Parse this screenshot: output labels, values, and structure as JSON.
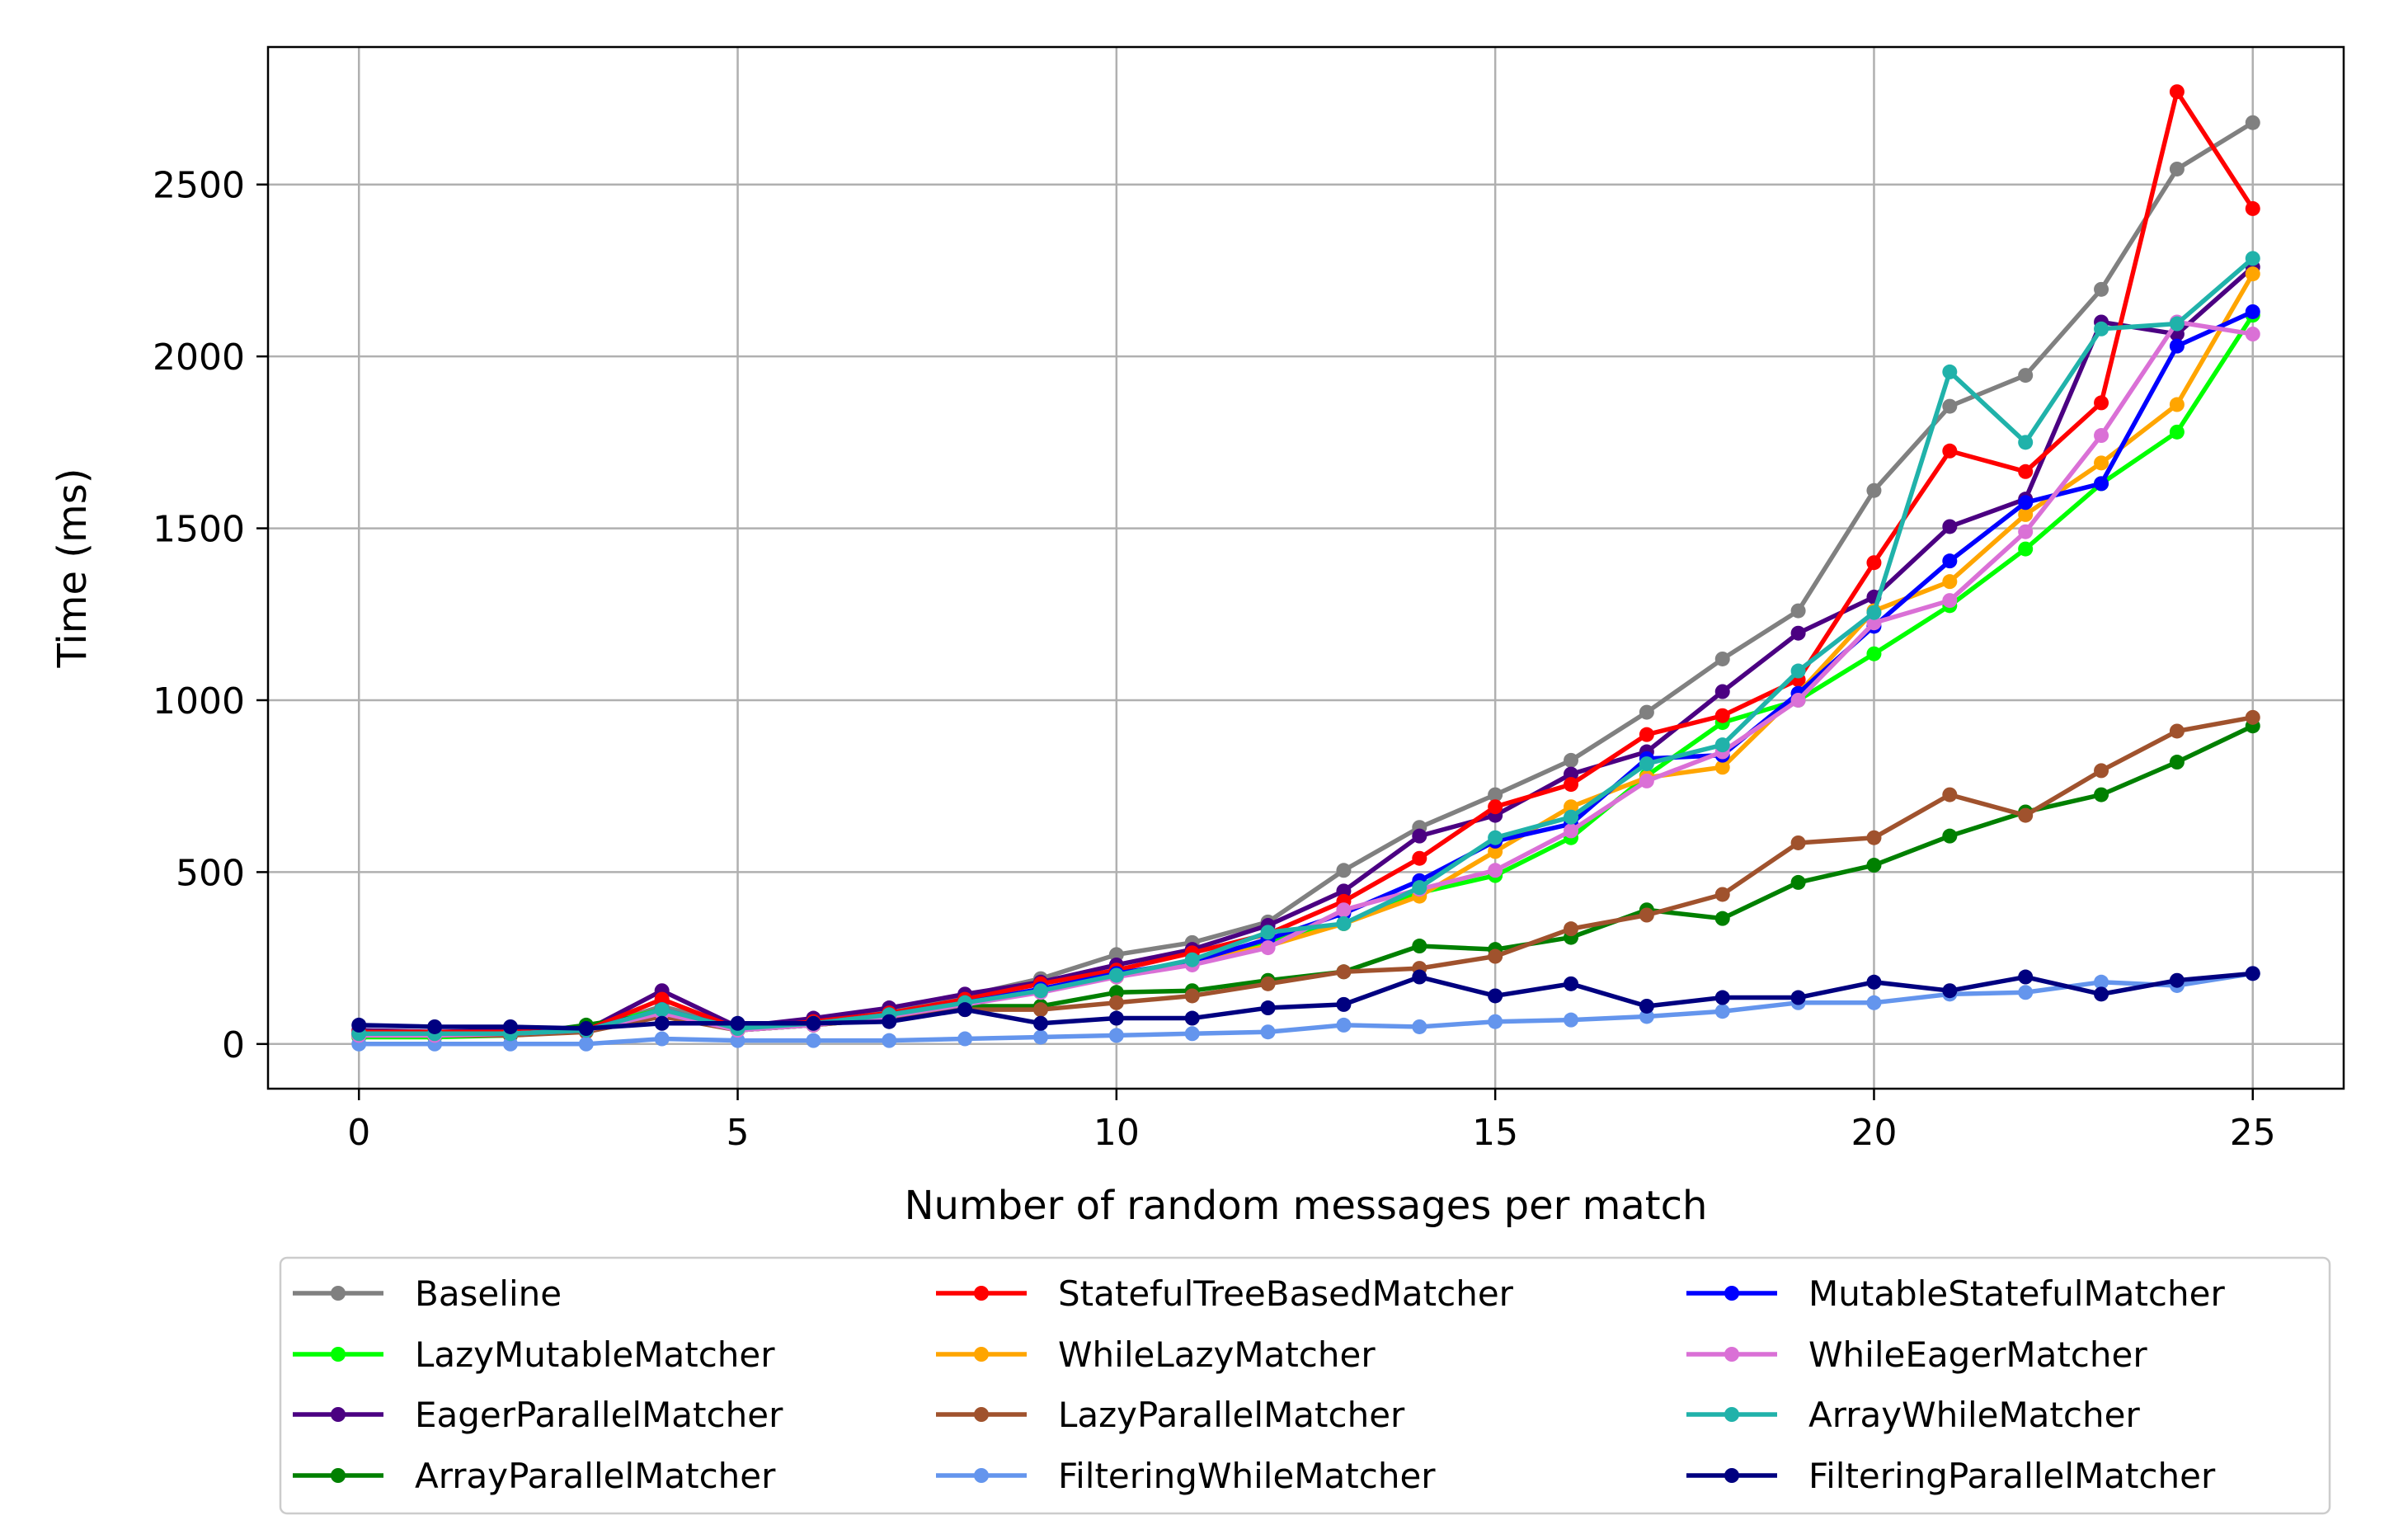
{
  "chart_data": {
    "type": "line",
    "title": "",
    "xlabel": "Number of random messages per match",
    "ylabel": "Time (ms)",
    "xlim": [
      -1.2,
      26.2
    ],
    "ylim": [
      -130,
      2900
    ],
    "xticks": [
      0,
      5,
      10,
      15,
      20,
      25
    ],
    "yticks": [
      0,
      500,
      1000,
      1500,
      2000,
      2500
    ],
    "grid": true,
    "legend_position": "below",
    "legend_columns": 3,
    "x": [
      0,
      1,
      2,
      3,
      4,
      5,
      6,
      7,
      8,
      9,
      10,
      11,
      12,
      13,
      14,
      15,
      16,
      17,
      18,
      19,
      20,
      21,
      22,
      23,
      24,
      25
    ],
    "series": [
      {
        "name": "Baseline",
        "color": "#808080",
        "values": [
          30,
          30,
          35,
          40,
          110,
          50,
          70,
          95,
          140,
          190,
          260,
          295,
          355,
          505,
          630,
          725,
          825,
          965,
          1120,
          1260,
          1610,
          1855,
          1945,
          2195,
          2545,
          2680
        ]
      },
      {
        "name": "LazyMutableMatcher",
        "color": "#00ff00",
        "values": [
          20,
          20,
          25,
          50,
          100,
          40,
          55,
          80,
          115,
          155,
          200,
          240,
          300,
          350,
          440,
          490,
          600,
          780,
          935,
          1000,
          1135,
          1275,
          1440,
          1630,
          1780,
          2120
        ]
      },
      {
        "name": "EagerParallelMatcher",
        "color": "#4b0082",
        "values": [
          40,
          35,
          40,
          40,
          155,
          50,
          75,
          105,
          145,
          180,
          230,
          275,
          345,
          445,
          605,
          665,
          785,
          850,
          1025,
          1195,
          1300,
          1505,
          1585,
          2100,
          2065,
          2260
        ]
      },
      {
        "name": "ArrayParallelMatcher",
        "color": "#008000",
        "values": [
          25,
          25,
          25,
          55,
          90,
          40,
          55,
          75,
          110,
          110,
          150,
          155,
          185,
          210,
          285,
          275,
          310,
          390,
          365,
          470,
          520,
          605,
          675,
          725,
          820,
          925
        ]
      },
      {
        "name": "StatefulTreeBasedMatcher",
        "color": "#ff0000",
        "values": [
          35,
          35,
          35,
          40,
          130,
          45,
          65,
          90,
          130,
          175,
          215,
          265,
          320,
          415,
          540,
          690,
          755,
          900,
          955,
          1060,
          1400,
          1725,
          1665,
          1865,
          2770,
          2430
        ]
      },
      {
        "name": "WhileLazyMatcher",
        "color": "#ffa500",
        "values": [
          25,
          25,
          30,
          40,
          95,
          40,
          60,
          85,
          120,
          155,
          195,
          240,
          285,
          350,
          430,
          560,
          690,
          775,
          805,
          1020,
          1260,
          1345,
          1540,
          1690,
          1860,
          2240
        ]
      },
      {
        "name": "LazyParallelMatcher",
        "color": "#a0522d",
        "values": [
          25,
          25,
          25,
          35,
          80,
          40,
          55,
          75,
          100,
          100,
          120,
          140,
          175,
          210,
          220,
          255,
          335,
          375,
          435,
          585,
          600,
          725,
          665,
          795,
          910,
          950
        ]
      },
      {
        "name": "FilteringWhileMatcher",
        "color": "#6495ed",
        "values": [
          0,
          0,
          0,
          0,
          15,
          10,
          10,
          10,
          15,
          20,
          25,
          30,
          35,
          55,
          50,
          65,
          70,
          80,
          95,
          120,
          120,
          145,
          150,
          180,
          170,
          205
        ]
      },
      {
        "name": "MutableStatefulMatcher",
        "color": "#0000ff",
        "values": [
          30,
          30,
          30,
          40,
          100,
          45,
          60,
          85,
          120,
          160,
          205,
          240,
          305,
          380,
          475,
          590,
          640,
          830,
          840,
          1020,
          1215,
          1405,
          1575,
          1630,
          2030,
          2130
        ]
      },
      {
        "name": "WhileEagerMatcher",
        "color": "#da70d6",
        "values": [
          25,
          25,
          30,
          40,
          90,
          40,
          55,
          80,
          115,
          150,
          195,
          230,
          280,
          390,
          450,
          505,
          620,
          765,
          850,
          1000,
          1225,
          1290,
          1490,
          1770,
          2100,
          2065
        ]
      },
      {
        "name": "ArrayWhileMatcher",
        "color": "#20b2aa",
        "values": [
          30,
          30,
          30,
          40,
          100,
          45,
          60,
          85,
          120,
          155,
          200,
          245,
          325,
          350,
          455,
          600,
          660,
          815,
          870,
          1085,
          1255,
          1955,
          1750,
          2080,
          2095,
          2285
        ]
      },
      {
        "name": "FilteringParallelMatcher",
        "color": "#000080",
        "values": [
          55,
          50,
          50,
          45,
          60,
          60,
          60,
          65,
          100,
          60,
          75,
          75,
          105,
          115,
          195,
          140,
          175,
          110,
          135,
          135,
          180,
          155,
          195,
          145,
          185,
          205
        ]
      }
    ]
  }
}
